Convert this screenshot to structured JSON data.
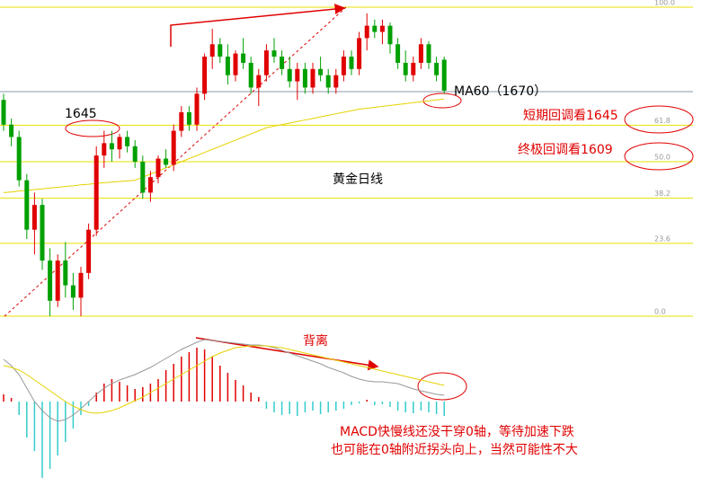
{
  "chart_data": [
    {
      "type": "candlestick",
      "ohlc": [
        [
          70,
          72,
          60,
          62
        ],
        [
          62,
          64,
          55,
          58
        ],
        [
          58,
          60,
          42,
          44
        ],
        [
          44,
          46,
          25,
          28
        ],
        [
          28,
          40,
          20,
          36
        ],
        [
          36,
          38,
          15,
          18
        ],
        [
          18,
          22,
          0,
          5
        ],
        [
          5,
          20,
          3,
          18
        ],
        [
          18,
          24,
          6,
          10
        ],
        [
          10,
          14,
          2,
          6
        ],
        [
          6,
          16,
          0,
          14
        ],
        [
          14,
          30,
          12,
          28
        ],
        [
          28,
          55,
          26,
          52
        ],
        [
          52,
          60,
          48,
          56
        ],
        [
          56,
          60,
          50,
          54
        ],
        [
          54,
          59,
          51,
          58
        ],
        [
          58,
          60,
          53,
          55
        ],
        [
          55,
          57,
          48,
          50
        ],
        [
          50,
          52,
          38,
          40
        ],
        [
          40,
          47,
          37,
          45
        ],
        [
          45,
          52,
          43,
          51
        ],
        [
          51,
          54,
          48,
          49
        ],
        [
          49,
          62,
          47,
          60
        ],
        [
          60,
          68,
          58,
          66
        ],
        [
          66,
          68,
          60,
          62
        ],
        [
          62,
          74,
          60,
          72
        ],
        [
          72,
          85,
          70,
          84
        ],
        [
          84,
          93,
          80,
          88
        ],
        [
          88,
          90,
          82,
          84
        ],
        [
          84,
          88,
          75,
          78
        ],
        [
          78,
          86,
          76,
          85
        ],
        [
          85,
          90,
          80,
          82
        ],
        [
          82,
          84,
          72,
          74
        ],
        [
          74,
          80,
          68,
          78
        ],
        [
          78,
          88,
          76,
          86
        ],
        [
          86,
          90,
          82,
          84
        ],
        [
          84,
          86,
          78,
          80
        ],
        [
          80,
          84,
          74,
          76
        ],
        [
          76,
          82,
          70,
          80
        ],
        [
          80,
          82,
          72,
          74
        ],
        [
          74,
          82,
          72,
          80
        ],
        [
          80,
          84,
          76,
          78
        ],
        [
          78,
          80,
          72,
          74
        ],
        [
          74,
          80,
          72,
          78
        ],
        [
          78,
          86,
          76,
          84
        ],
        [
          84,
          86,
          78,
          80
        ],
        [
          80,
          92,
          78,
          90
        ],
        [
          90,
          98,
          86,
          94
        ],
        [
          94,
          96,
          90,
          92
        ],
        [
          92,
          96,
          88,
          94
        ],
        [
          94,
          95,
          85,
          88
        ],
        [
          88,
          90,
          80,
          82
        ],
        [
          82,
          86,
          76,
          78
        ],
        [
          78,
          84,
          76,
          82
        ],
        [
          82,
          90,
          80,
          88
        ],
        [
          88,
          89,
          80,
          82
        ],
        [
          82,
          84,
          76,
          78
        ],
        [
          83,
          84,
          72,
          73
        ]
      ],
      "up_color": "#e00000",
      "down_color": "#00a000",
      "lines": [
        {
          "color": "#e6d200",
          "values": [
            40,
            40.2,
            40.5,
            40.7,
            41,
            41.2,
            41.5,
            41.7,
            42,
            42.2,
            42.5,
            42.7,
            43,
            43.2,
            43.4,
            43.6,
            43.8,
            44,
            45,
            46,
            47,
            48,
            49,
            50,
            51,
            52,
            53,
            54,
            55,
            56,
            57,
            58,
            59,
            60,
            61,
            61.5,
            62,
            62.5,
            63,
            63.5,
            64,
            64.5,
            65,
            65.5,
            66,
            66.5,
            67,
            67.3,
            67.6,
            67.9,
            68.2,
            68.5,
            68.8,
            69.1,
            69.4,
            69.7,
            70,
            70.3
          ]
        }
      ],
      "ylim": [
        0,
        100
      ],
      "yticks": [
        {
          "value": 0,
          "label": "0.0"
        },
        23.6,
        38.2,
        {
          "value": 50,
          "label": "50.0"
        },
        61.8,
        {
          "value": 100,
          "label": "100.0"
        }
      ],
      "grid": true,
      "grid_color": "#e8e000",
      "annotations": [
        "1645",
        "MA60（1670）",
        "短期回调看1645",
        "终极回调看1609",
        "黄金日线"
      ]
    },
    {
      "type": "macd",
      "values": [
        8,
        4,
        -15,
        -40,
        -55,
        -85,
        -75,
        -60,
        -45,
        -30,
        -15,
        -5,
        10,
        20,
        25,
        22,
        18,
        14,
        16,
        20,
        25,
        35,
        42,
        50,
        55,
        60,
        58,
        50,
        40,
        32,
        24,
        18,
        10,
        5,
        -8,
        -12,
        -15,
        -14,
        -16,
        -12,
        -10,
        -14,
        -12,
        -10,
        -8,
        -4,
        -2,
        2,
        -4,
        -3,
        -6,
        -10,
        -12,
        -13,
        -10,
        -12,
        -14,
        -16
      ],
      "up_color": "#e00000",
      "down_color": "#33cccc",
      "lines": [
        {
          "color": "#999999",
          "values": [
            47,
            40,
            30,
            15,
            0,
            -10,
            -18,
            -22,
            -20,
            -15,
            -8,
            0,
            8,
            15,
            20,
            24,
            27,
            30,
            34,
            38,
            43,
            48,
            53,
            58,
            62,
            66,
            69,
            68,
            67,
            66,
            65,
            64,
            63,
            63,
            62,
            60,
            57,
            54,
            51,
            48,
            45,
            42,
            38,
            35,
            32,
            28,
            25,
            23,
            22,
            22,
            21,
            20,
            17,
            14,
            12,
            10,
            8,
            7
          ]
        },
        {
          "color": "#e6d200",
          "values": [
            40,
            38,
            35,
            30,
            24,
            18,
            12,
            6,
            0,
            -5,
            -9,
            -12,
            -13,
            -12,
            -10,
            -7,
            -3,
            1,
            5,
            10,
            15,
            20,
            25,
            30,
            35,
            40,
            45,
            50,
            54,
            57,
            60,
            61,
            62,
            62,
            62,
            61,
            60,
            58,
            56,
            54,
            52,
            50,
            48,
            46,
            44,
            42,
            40,
            38,
            36,
            34,
            32,
            30,
            28,
            26,
            24,
            22,
            20,
            18
          ]
        }
      ],
      "annotations": [
        "背离",
        "MACD快慢线还没干穿0轴，等待加速下跌",
        "也可能在0轴附近拐头向上，当然可能性不大"
      ]
    }
  ]
}
